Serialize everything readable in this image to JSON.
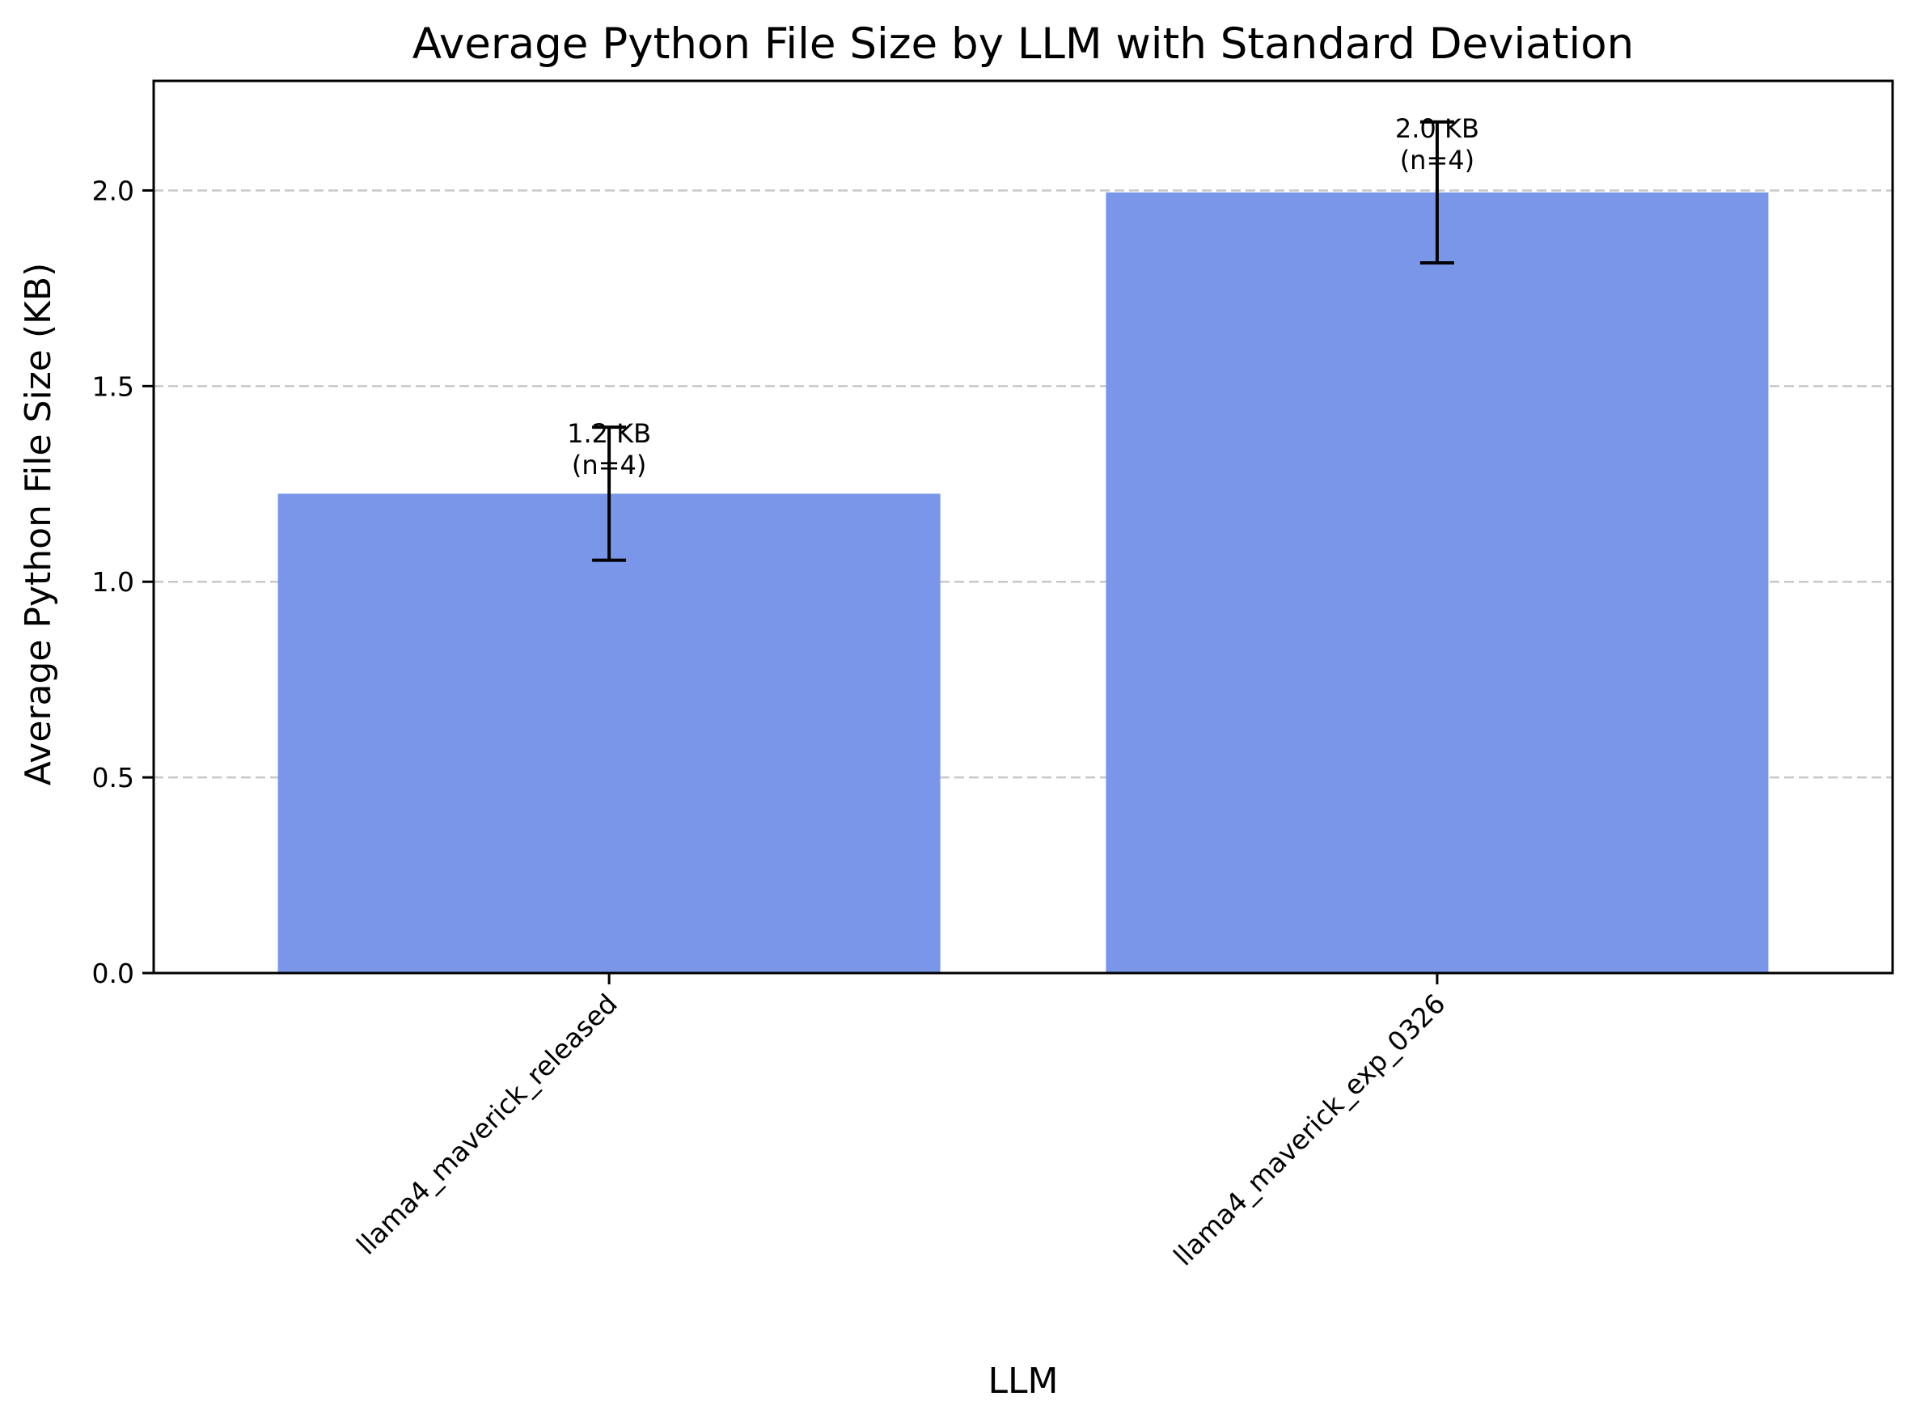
{
  "chart_data": {
    "type": "bar",
    "title": "Average Python File Size by LLM with Standard Deviation",
    "xlabel": "LLM",
    "ylabel": "Average Python File Size (KB)",
    "categories": [
      "llama4_maverick_released",
      "llama4_maverick_exp_0326"
    ],
    "values": [
      1.225,
      1.995
    ],
    "errors": [
      0.17,
      0.18
    ],
    "bar_labels": [
      "1.2 KB",
      "2.0 KB"
    ],
    "counts": [
      "(n=4)",
      "(n=4)"
    ],
    "ylim": [
      0,
      2.28
    ],
    "yticks": [
      0.0,
      0.5,
      1.0,
      1.5,
      2.0
    ],
    "ytick_labels": [
      "0.0",
      "0.5",
      "1.0",
      "1.5",
      "2.0"
    ],
    "grid": "y-dashed",
    "bar_color": "#7a96e8",
    "grid_color": "#c8c8c8"
  }
}
